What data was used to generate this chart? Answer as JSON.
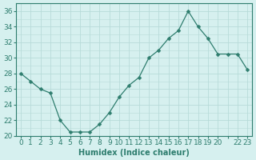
{
  "x": [
    0,
    1,
    2,
    3,
    4,
    5,
    6,
    7,
    8,
    9,
    10,
    11,
    12,
    13,
    14,
    15,
    16,
    17,
    18,
    19,
    20,
    21,
    22,
    23
  ],
  "y": [
    28,
    27,
    26,
    25.5,
    22,
    20.5,
    20.5,
    20.5,
    21.5,
    23,
    25,
    26.5,
    27.5,
    30,
    31,
    32.5,
    33.5,
    36,
    34,
    32.5,
    30.5,
    30.5,
    30.5,
    28.5
  ],
  "line_color": "#2e7d6e",
  "marker": "D",
  "marker_size": 2.5,
  "bg_color": "#d6f0ef",
  "grid_color": "#b8dbd9",
  "xlabel": "Humidex (Indice chaleur)",
  "xlim": [
    -0.5,
    23.5
  ],
  "ylim": [
    20,
    37
  ],
  "yticks": [
    20,
    22,
    24,
    26,
    28,
    30,
    32,
    34,
    36
  ],
  "xtick_labels": [
    "0",
    "1",
    "2",
    "3",
    "4",
    "5",
    "6",
    "7",
    "8",
    "9",
    "10",
    "11",
    "12",
    "13",
    "14",
    "15",
    "16",
    "17",
    "18",
    "19",
    "20",
    "",
    "22",
    "23"
  ],
  "label_fontsize": 7,
  "tick_fontsize": 6.5
}
